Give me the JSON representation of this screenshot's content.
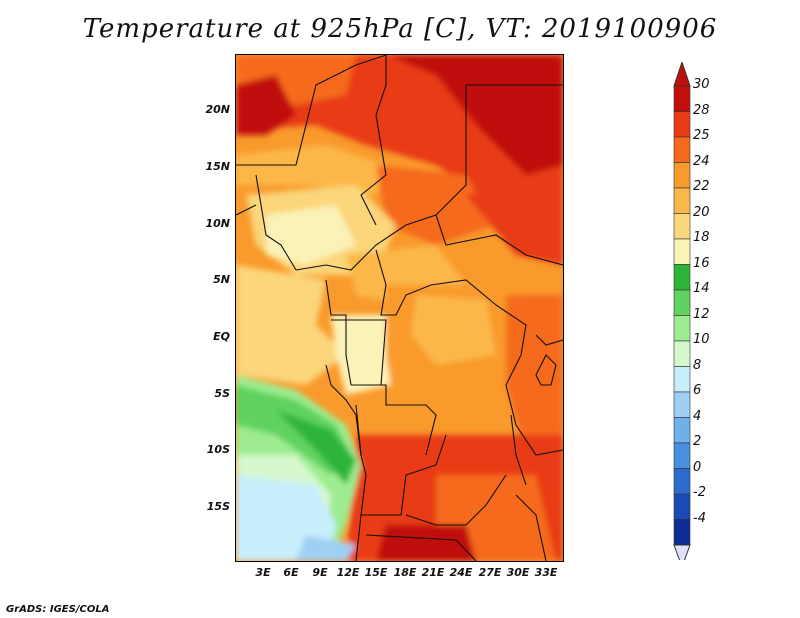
{
  "title": "Temperature at 925hPa [C], VT: 2019100906",
  "credit": "GrADS: IGES/COLA",
  "lat_labels": [
    "20N",
    "15N",
    "10N",
    "5N",
    "EQ",
    "5S",
    "10S",
    "15S"
  ],
  "lon_labels": [
    "3E",
    "6E",
    "9E",
    "12E",
    "15E",
    "18E",
    "21E",
    "24E",
    "27E",
    "30E",
    "33E"
  ],
  "colorbar": {
    "labels": [
      "30",
      "28",
      "25",
      "24",
      "22",
      "20",
      "18",
      "16",
      "14",
      "12",
      "10",
      "8",
      "6",
      "4",
      "2",
      "0",
      "-2",
      "-4"
    ],
    "colors": [
      "#c0100c",
      "#e83a14",
      "#f56a1a",
      "#f99a2c",
      "#fbb84a",
      "#fbd67a",
      "#fbf2b8",
      "#2fb43a",
      "#5fd25f",
      "#9eec91",
      "#d6f8ce",
      "#c8eefc",
      "#9fd0f4",
      "#6fb0ea",
      "#4a8fe0",
      "#2c6cd0",
      "#1a4ab8",
      "#0e2c94",
      "#0a1264"
    ]
  }
}
